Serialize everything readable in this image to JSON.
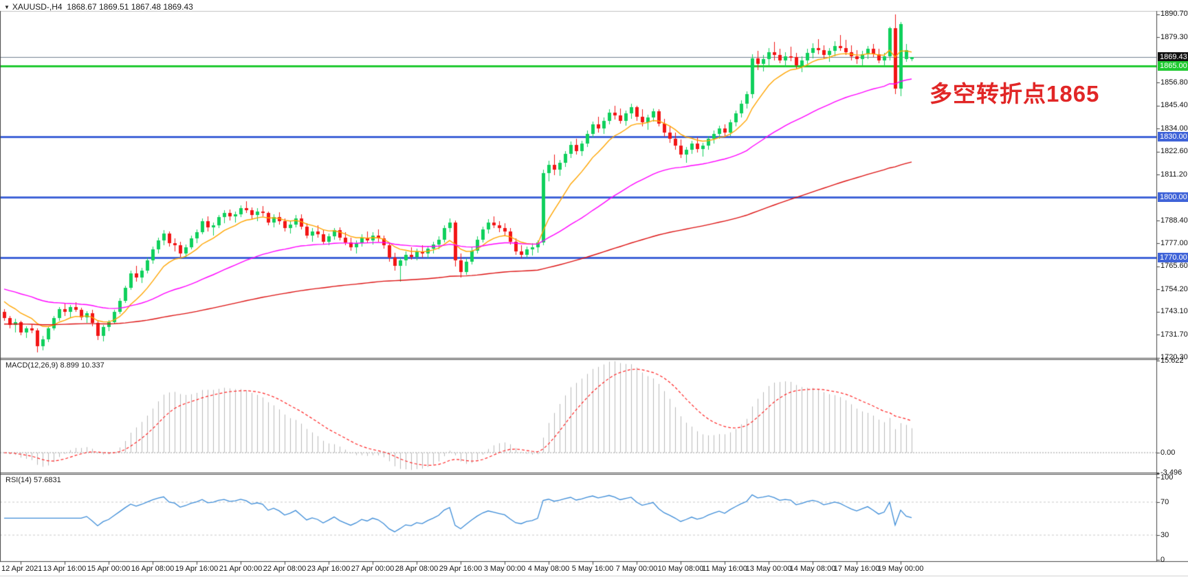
{
  "title": {
    "dropdown_icon": "▼",
    "symbol_period": "XAUUSD-,H4",
    "ohlc_text": "1868.67 1869.51 1867.48 1869.43"
  },
  "annotation": {
    "text": "多空转折点1865",
    "color": "#e12626"
  },
  "indicator_labels": {
    "macd": "MACD(12,26,9) 8.899 10.337",
    "rsi": "RSI(14) 57.6831"
  },
  "colors": {
    "bull": "#0fd05c",
    "bear": "#f21515",
    "ma_fast": "#ffa500",
    "ma_mid": "#ff00ff",
    "ma_slow": "#dd1111",
    "macd_bar": "#b9b9b9",
    "macd_signal": "#ff2222",
    "rsi_line": "#3c8cd8",
    "level_dash": "#c8c8c8",
    "grid_border": "#555555",
    "current_price_line": "#708090"
  },
  "chart_data": {
    "type": "candlestick-ohlc",
    "symbol": "XAUUSD",
    "period": "H4",
    "y_axis_price_ticks": [
      "1890.70",
      "1879.30",
      "1856.80",
      "1845.40",
      "1834.00",
      "1822.60",
      "1811.20",
      "1788.40",
      "1777.00",
      "1765.60",
      "1754.20",
      "1743.10",
      "1731.70",
      "1720.30"
    ],
    "price_badges": [
      {
        "text": "1869.43",
        "price": 1869.43,
        "bg": "#111111",
        "fg": "#ffffff"
      },
      {
        "text": "1865.00",
        "price": 1865.0,
        "bg": "#1fca30",
        "fg": "#ffffff"
      },
      {
        "text": "1830.00",
        "price": 1830.0,
        "bg": "#3f63d8",
        "fg": "#ffffff"
      },
      {
        "text": "1800.00",
        "price": 1800.0,
        "bg": "#3f63d8",
        "fg": "#ffffff"
      },
      {
        "text": "1770.00",
        "price": 1770.0,
        "bg": "#3f63d8",
        "fg": "#ffffff"
      }
    ],
    "h_lines": [
      {
        "name": "current-price",
        "price": 1869.43,
        "color": "#708090",
        "width": 1
      },
      {
        "name": "level-1865",
        "price": 1865,
        "color": "#1fca30",
        "width": 3
      },
      {
        "name": "level-1830",
        "price": 1830,
        "color": "#3f63d8",
        "width": 3
      },
      {
        "name": "level-1800",
        "price": 1800,
        "color": "#3f63d8",
        "width": 3
      },
      {
        "name": "level-1770",
        "price": 1770,
        "color": "#3f63d8",
        "width": 3
      }
    ],
    "x_labels": [
      "12 Apr 2021",
      "13 Apr 16:00",
      "15 Apr 00:00",
      "16 Apr 08:00",
      "19 Apr 16:00",
      "21 Apr 00:00",
      "22 Apr 08:00",
      "23 Apr 16:00",
      "27 Apr 00:00",
      "28 Apr 08:00",
      "29 Apr 16:00",
      "3 May 00:00",
      "4 May 08:00",
      "5 May 16:00",
      "7 May 00:00",
      "10 May 08:00",
      "11 May 16:00",
      "13 May 00:00",
      "14 May 08:00",
      "17 May 16:00",
      "19 May 00:00"
    ],
    "moving_averages": [
      {
        "name": "fast",
        "period": 10,
        "seed": 1750,
        "color": "#ffa500"
      },
      {
        "name": "mid",
        "period": 45,
        "seed": 1755,
        "color": "#ff00ff"
      },
      {
        "name": "slow",
        "period": 150,
        "seed": 1737,
        "color": "#dd1111"
      }
    ],
    "macd": {
      "params": [
        12,
        26,
        9
      ],
      "current_macd": 8.899,
      "current_signal": 10.337,
      "ticks": [
        {
          "text": "15.622",
          "value": 15.622
        },
        {
          "text": "0.00",
          "value": 0
        },
        {
          "text": "-3.496",
          "value": -3.496
        }
      ]
    },
    "rsi": {
      "period": 14,
      "current": 57.6831,
      "levels": [
        70,
        30
      ],
      "ticks": [
        {
          "text": "100",
          "value": 100
        },
        {
          "text": "70",
          "value": 70
        },
        {
          "text": "30",
          "value": 30
        },
        {
          "text": "0",
          "value": 0
        }
      ]
    },
    "candles": [
      [
        1743,
        1744.5,
        1738.5,
        1740
      ],
      [
        1740,
        1741,
        1735,
        1736.5
      ],
      [
        1736.5,
        1739.5,
        1733,
        1738
      ],
      [
        1738,
        1738.5,
        1731.5,
        1733
      ],
      [
        1733,
        1736,
        1730,
        1735
      ],
      [
        1735,
        1737,
        1732.5,
        1734
      ],
      [
        1734,
        1735,
        1722.8,
        1726
      ],
      [
        1726,
        1731,
        1724,
        1729.5
      ],
      [
        1729.5,
        1736,
        1728,
        1735
      ],
      [
        1735,
        1741,
        1734,
        1740
      ],
      [
        1740,
        1745.5,
        1738.5,
        1744.5
      ],
      [
        1744.5,
        1747,
        1741,
        1743
      ],
      [
        1743,
        1746.5,
        1740.5,
        1745.5
      ],
      [
        1745.5,
        1748,
        1743,
        1744
      ],
      [
        1744,
        1745,
        1739,
        1740.5
      ],
      [
        1740.5,
        1743.5,
        1737.5,
        1742.5
      ],
      [
        1742.5,
        1744,
        1736,
        1737.5
      ],
      [
        1737.5,
        1739,
        1729,
        1731
      ],
      [
        1731,
        1736.5,
        1728.5,
        1735.5
      ],
      [
        1735.5,
        1739,
        1733.5,
        1738
      ],
      [
        1738,
        1744,
        1737,
        1743
      ],
      [
        1743,
        1750,
        1742,
        1748.5
      ],
      [
        1748.5,
        1756,
        1747.5,
        1755
      ],
      [
        1755,
        1763.5,
        1754,
        1762
      ],
      [
        1762,
        1766,
        1758,
        1760
      ],
      [
        1760,
        1765,
        1757.5,
        1763.5
      ],
      [
        1763.5,
        1770,
        1762,
        1768.5
      ],
      [
        1768.5,
        1775.5,
        1767,
        1774
      ],
      [
        1774,
        1780,
        1772,
        1778.5
      ],
      [
        1778.5,
        1783.5,
        1776,
        1782
      ],
      [
        1782,
        1783,
        1775.5,
        1777
      ],
      [
        1777,
        1779.5,
        1773,
        1776
      ],
      [
        1776,
        1778,
        1770.5,
        1772
      ],
      [
        1772,
        1776.5,
        1770,
        1775
      ],
      [
        1775,
        1781,
        1774,
        1779.5
      ],
      [
        1779.5,
        1784,
        1777,
        1782.5
      ],
      [
        1782.5,
        1789.5,
        1781.5,
        1788
      ],
      [
        1788,
        1790.5,
        1783,
        1785
      ],
      [
        1785,
        1787.5,
        1781,
        1786
      ],
      [
        1786,
        1791,
        1784.5,
        1790
      ],
      [
        1790,
        1793.5,
        1787,
        1792
      ],
      [
        1792,
        1794,
        1788.5,
        1790.5
      ],
      [
        1790.5,
        1793,
        1787.5,
        1791.5
      ],
      [
        1791.5,
        1796,
        1790,
        1794.5
      ],
      [
        1794.5,
        1797.8,
        1792,
        1793.5
      ],
      [
        1793.5,
        1795,
        1789,
        1791
      ],
      [
        1791,
        1794.5,
        1788,
        1793
      ],
      [
        1793,
        1795.5,
        1790.5,
        1792
      ],
      [
        1792,
        1793,
        1786,
        1787.5
      ],
      [
        1787.5,
        1791.5,
        1785,
        1790
      ],
      [
        1790,
        1792.5,
        1786.5,
        1788
      ],
      [
        1788,
        1789.5,
        1783,
        1784.5
      ],
      [
        1784.5,
        1788,
        1782,
        1786.5
      ],
      [
        1786.5,
        1791,
        1785,
        1789.5
      ],
      [
        1789.5,
        1791.5,
        1784,
        1785.5
      ],
      [
        1785.5,
        1787,
        1779.5,
        1781
      ],
      [
        1781,
        1784.5,
        1778,
        1783
      ],
      [
        1783,
        1786,
        1780,
        1781.5
      ],
      [
        1781.5,
        1783.5,
        1776.5,
        1778
      ],
      [
        1778,
        1782,
        1776,
        1780.5
      ],
      [
        1780.5,
        1784.5,
        1779,
        1783.5
      ],
      [
        1783.5,
        1785,
        1778.5,
        1780
      ],
      [
        1780,
        1782.5,
        1776,
        1777.5
      ],
      [
        1777.5,
        1780,
        1773.5,
        1775
      ],
      [
        1775,
        1778.5,
        1772,
        1777
      ],
      [
        1777,
        1781.5,
        1775.5,
        1780
      ],
      [
        1780,
        1783,
        1777,
        1778.5
      ],
      [
        1778.5,
        1782.5,
        1776.5,
        1781
      ],
      [
        1781,
        1784,
        1778,
        1779.5
      ],
      [
        1779.5,
        1781,
        1774.5,
        1776
      ],
      [
        1776,
        1777,
        1768,
        1770
      ],
      [
        1770,
        1772.5,
        1763.5,
        1766
      ],
      [
        1766,
        1770,
        1758,
        1768.5
      ],
      [
        1768.5,
        1773,
        1766,
        1771.5
      ],
      [
        1771.5,
        1775,
        1769,
        1770.5
      ],
      [
        1770.5,
        1774.5,
        1768.5,
        1773
      ],
      [
        1773,
        1776,
        1770,
        1772
      ],
      [
        1772,
        1775.5,
        1769.5,
        1774.5
      ],
      [
        1774.5,
        1778,
        1772,
        1776.5
      ],
      [
        1776.5,
        1780.5,
        1774,
        1779
      ],
      [
        1779,
        1786,
        1777.5,
        1784.5
      ],
      [
        1784.5,
        1789.5,
        1782.5,
        1787.5
      ],
      [
        1787.5,
        1788.5,
        1765.5,
        1768.5
      ],
      [
        1768.5,
        1772,
        1760,
        1763
      ],
      [
        1763,
        1769.5,
        1761.5,
        1768
      ],
      [
        1768,
        1775,
        1766.5,
        1773.5
      ],
      [
        1773.5,
        1780.5,
        1772,
        1779
      ],
      [
        1779,
        1785.5,
        1777.5,
        1784
      ],
      [
        1784,
        1789,
        1782,
        1787.5
      ],
      [
        1787.5,
        1790.5,
        1784.5,
        1786
      ],
      [
        1786,
        1788,
        1782.5,
        1784.5
      ],
      [
        1784.5,
        1787,
        1781,
        1783
      ],
      [
        1783,
        1784.5,
        1776.5,
        1778
      ],
      [
        1778,
        1779.5,
        1771.5,
        1773
      ],
      [
        1773,
        1776,
        1769.8,
        1771.5
      ],
      [
        1771.5,
        1775.5,
        1770,
        1774
      ],
      [
        1774,
        1777,
        1771,
        1775
      ],
      [
        1775,
        1778.5,
        1772.5,
        1777.5
      ],
      [
        1777.5,
        1813.5,
        1776,
        1812
      ],
      [
        1812,
        1818,
        1808,
        1816
      ],
      [
        1816,
        1821,
        1811,
        1813.5
      ],
      [
        1813.5,
        1818.5,
        1810.5,
        1817
      ],
      [
        1817,
        1823,
        1815,
        1821.5
      ],
      [
        1821.5,
        1827.5,
        1819.5,
        1826
      ],
      [
        1826,
        1829,
        1821,
        1823
      ],
      [
        1823,
        1828,
        1820.5,
        1826.5
      ],
      [
        1826.5,
        1833,
        1825,
        1831.5
      ],
      [
        1831.5,
        1837.5,
        1829.5,
        1836
      ],
      [
        1836,
        1840,
        1832,
        1834
      ],
      [
        1834,
        1839.5,
        1831.5,
        1838
      ],
      [
        1838,
        1843.5,
        1836,
        1842
      ],
      [
        1842,
        1845.5,
        1838.5,
        1840.5
      ],
      [
        1840.5,
        1844,
        1836.5,
        1838
      ],
      [
        1838,
        1843,
        1835.5,
        1841.5
      ],
      [
        1841.5,
        1846.5,
        1839,
        1844.5
      ],
      [
        1844.5,
        1845.5,
        1838,
        1840
      ],
      [
        1840,
        1843.5,
        1835,
        1837
      ],
      [
        1837,
        1841,
        1833.5,
        1839.5
      ],
      [
        1839.5,
        1844,
        1837.5,
        1842.5
      ],
      [
        1842.5,
        1843.5,
        1835,
        1836.5
      ],
      [
        1836.5,
        1839,
        1830,
        1832
      ],
      [
        1832,
        1835.5,
        1827,
        1829
      ],
      [
        1829,
        1832,
        1823.5,
        1825.5
      ],
      [
        1825.5,
        1828.5,
        1819.5,
        1821
      ],
      [
        1821,
        1825,
        1817,
        1823.5
      ],
      [
        1823.5,
        1828,
        1821.5,
        1826.5
      ],
      [
        1826.5,
        1829.5,
        1822,
        1824
      ],
      [
        1824,
        1827,
        1820,
        1825.5
      ],
      [
        1825.5,
        1830.5,
        1823.5,
        1829
      ],
      [
        1829,
        1833,
        1826.5,
        1831.5
      ],
      [
        1831.5,
        1835.5,
        1829,
        1834
      ],
      [
        1834,
        1836,
        1829.5,
        1832
      ],
      [
        1832,
        1838.5,
        1830.5,
        1837
      ],
      [
        1837,
        1843,
        1835,
        1841.5
      ],
      [
        1841.5,
        1848,
        1839.5,
        1846.5
      ],
      [
        1846.5,
        1852.5,
        1844,
        1851
      ],
      [
        1851,
        1871,
        1849,
        1869
      ],
      [
        1869,
        1872.5,
        1863,
        1866
      ],
      [
        1866,
        1870.5,
        1862.5,
        1868.5
      ],
      [
        1868.5,
        1874,
        1865.5,
        1872
      ],
      [
        1872,
        1877,
        1868,
        1870.5
      ],
      [
        1870.5,
        1873.5,
        1866.5,
        1868
      ],
      [
        1868,
        1872,
        1864.5,
        1870
      ],
      [
        1870,
        1874.5,
        1867.5,
        1869.5
      ],
      [
        1869.5,
        1871.5,
        1863.5,
        1865.5
      ],
      [
        1865.5,
        1870,
        1862,
        1868
      ],
      [
        1868,
        1873.5,
        1866,
        1871.5
      ],
      [
        1871.5,
        1876.5,
        1869,
        1874
      ],
      [
        1874,
        1878.5,
        1871,
        1873
      ],
      [
        1873,
        1875.5,
        1868.5,
        1870.5
      ],
      [
        1870.5,
        1874,
        1867,
        1872.5
      ],
      [
        1872.5,
        1877.5,
        1870,
        1875
      ],
      [
        1875,
        1880.5,
        1872.5,
        1874
      ],
      [
        1874,
        1878,
        1870.5,
        1872
      ],
      [
        1872,
        1875.5,
        1868,
        1870
      ],
      [
        1870,
        1873,
        1866,
        1868.5
      ],
      [
        1868.5,
        1872.5,
        1865.5,
        1871
      ],
      [
        1871,
        1875,
        1868.5,
        1873.5
      ],
      [
        1873.5,
        1876,
        1869.5,
        1871
      ],
      [
        1871,
        1873.5,
        1866.5,
        1868
      ],
      [
        1868,
        1871.5,
        1865,
        1870
      ],
      [
        1870,
        1884.5,
        1868,
        1884
      ],
      [
        1884,
        1890.7,
        1851,
        1854
      ],
      [
        1854,
        1887,
        1850,
        1886
      ],
      [
        1868.6,
        1876,
        1867,
        1873
      ],
      [
        1868.67,
        1869.51,
        1867.48,
        1869.43
      ]
    ]
  }
}
